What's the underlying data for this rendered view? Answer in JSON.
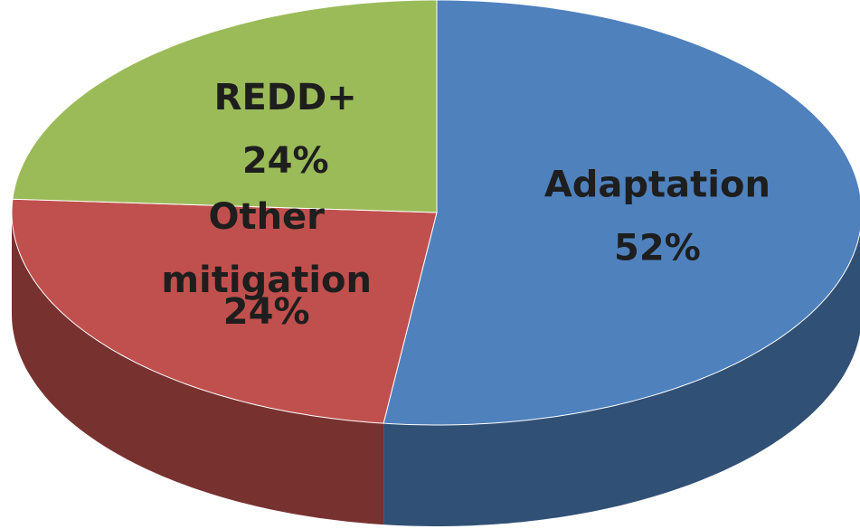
{
  "chart_data": {
    "type": "pie",
    "categories": [
      "Adaptation",
      "Other mitigation",
      "REDD+"
    ],
    "values": [
      52,
      24,
      24
    ],
    "value_labels": [
      "52%",
      "24%",
      "24%"
    ],
    "colors": [
      "#4f81bd",
      "#c0504d",
      "#9bbb59"
    ]
  }
}
